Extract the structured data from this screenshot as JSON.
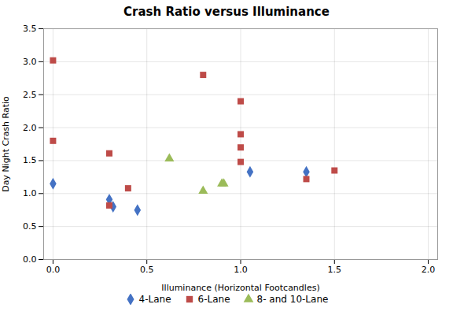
{
  "chart_data": {
    "type": "scatter",
    "title": "Crash Ratio versus Illuminance",
    "xlabel": "Illuminance (Horizontal Footcandles)",
    "ylabel": "Day Night Crash Ratio",
    "xlim": [
      -0.05,
      2.05
    ],
    "ylim": [
      0,
      3.5
    ],
    "xticks": [
      0,
      0.5,
      1.0,
      1.5,
      2.0
    ],
    "yticks": [
      0,
      0.5,
      1.0,
      1.5,
      2.0,
      2.5,
      3.0,
      3.5
    ],
    "grid": true,
    "legend": "bottom",
    "series": [
      {
        "name": "4-Lane",
        "color": "#4472C4",
        "marker": "diamond",
        "x": [
          0.0,
          0.3,
          0.32,
          0.45,
          1.05,
          1.35
        ],
        "values": [
          1.15,
          0.91,
          0.8,
          0.75,
          1.33,
          1.33
        ]
      },
      {
        "name": "6-Lane",
        "color": "#BE4B48",
        "marker": "square",
        "x": [
          0.0,
          0.0,
          0.3,
          0.3,
          0.4,
          0.8,
          1.0,
          1.0,
          1.0,
          1.0,
          1.35,
          1.5
        ],
        "values": [
          3.02,
          1.8,
          0.82,
          1.61,
          1.08,
          2.8,
          2.4,
          1.9,
          1.7,
          1.48,
          1.22,
          1.35
        ]
      },
      {
        "name": "8- and 10-Lane",
        "color": "#9BBB59",
        "marker": "triangle",
        "x": [
          0.62,
          0.8,
          0.9,
          0.91
        ],
        "values": [
          1.53,
          1.04,
          1.15,
          1.15
        ]
      }
    ]
  }
}
